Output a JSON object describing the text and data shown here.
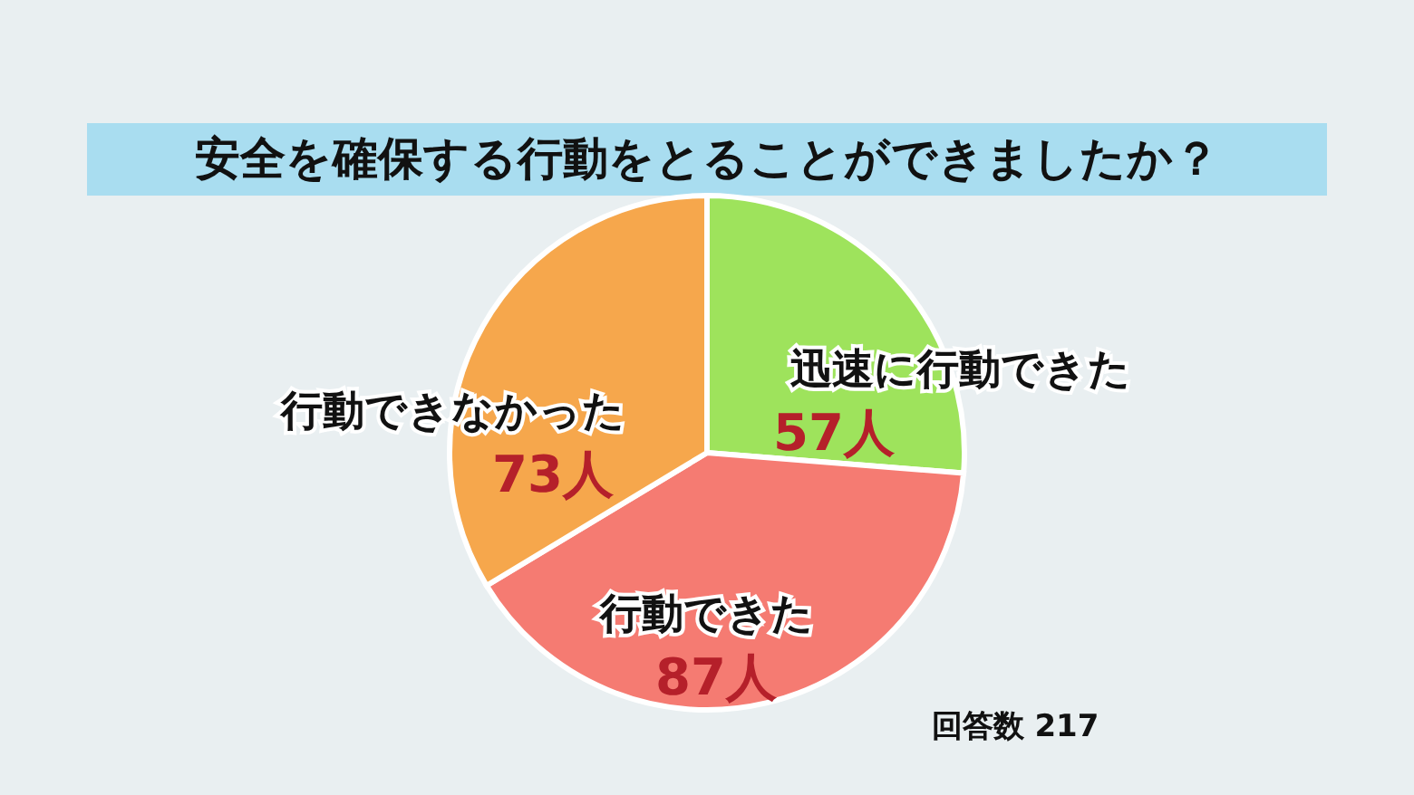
{
  "chart_data": {
    "type": "pie",
    "title": "安全を確保する行動をとることができましたか？",
    "categories": [
      "迅速に行動できた",
      "行動できた",
      "行動できなかった"
    ],
    "values": [
      57,
      87,
      73
    ],
    "value_labels": [
      "57人",
      "87人",
      "73人"
    ],
    "colors": [
      "#9ee35c",
      "#f57b72",
      "#f6a74c"
    ],
    "annotations": [
      "回答数 217"
    ]
  }
}
